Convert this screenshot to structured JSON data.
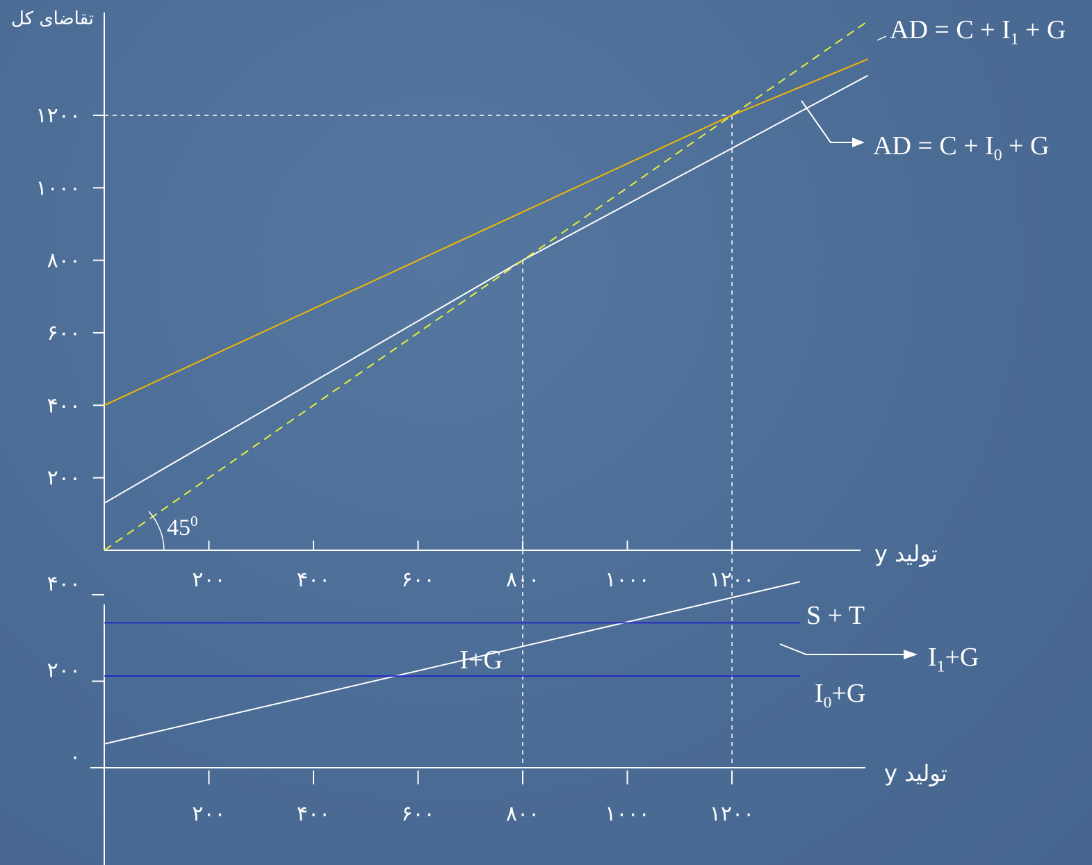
{
  "chart_data": [
    {
      "type": "line",
      "ylabel": "تقاضای کل",
      "xlabel": "y تولید",
      "x_ticks": [
        {
          "value": 200,
          "label": "۲۰۰"
        },
        {
          "value": 400,
          "label": "۴۰۰"
        },
        {
          "value": 600,
          "label": "۶۰۰"
        },
        {
          "value": 800,
          "label": "۸۰۰"
        },
        {
          "value": 1000,
          "label": "۱۰۰۰"
        },
        {
          "value": 1200,
          "label": "۱۲۰۰"
        }
      ],
      "y_ticks": [
        {
          "value": 200,
          "label": "۲۰۰"
        },
        {
          "value": 400,
          "label": "۴۰۰"
        },
        {
          "value": 600,
          "label": "۶۰۰"
        },
        {
          "value": 800,
          "label": "۸۰۰"
        },
        {
          "value": 1000,
          "label": "۱۰۰۰"
        },
        {
          "value": 1200,
          "label": "۱۲۰۰"
        }
      ],
      "series": [
        {
          "name": "AD = C + I1 + G",
          "color": "#f2b705",
          "style": "solid",
          "x": [
            0,
            1200,
            1460
          ],
          "y": [
            400,
            1200,
            1355
          ]
        },
        {
          "name": "AD = C + I0 + G",
          "color": "#ffffff",
          "style": "solid",
          "x": [
            0,
            800,
            1460
          ],
          "y": [
            130,
            800,
            1310
          ]
        },
        {
          "name": "45-degree line",
          "color": "#e6f03a",
          "style": "dashed",
          "x": [
            0,
            1460
          ],
          "y": [
            0,
            1460
          ]
        }
      ],
      "annotations": [
        {
          "text": "AD = C + I",
          "subscript": "1",
          "tail": " + G"
        },
        {
          "text": "AD = C + I",
          "subscript": "0",
          "tail": " + G"
        },
        {
          "text": "45",
          "superscript": "0"
        }
      ],
      "reference_lines": [
        {
          "x": 1200,
          "y": 1200
        },
        {
          "x": 800,
          "y": 800
        }
      ]
    },
    {
      "type": "line",
      "xlabel": "y تولید",
      "x_ticks": [
        {
          "value": 200,
          "label": "۲۰۰"
        },
        {
          "value": 400,
          "label": "۴۰۰"
        },
        {
          "value": 600,
          "label": "۶۰۰"
        },
        {
          "value": 800,
          "label": "۸۰۰"
        },
        {
          "value": 1000,
          "label": "۱۰۰۰"
        },
        {
          "value": 1200,
          "label": "۱۲۰۰"
        }
      ],
      "y_ticks": [
        {
          "value": 0,
          "label": "۰"
        },
        {
          "value": 200,
          "label": "۲۰۰"
        },
        {
          "value": 400,
          "label": "۴۰۰"
        }
      ],
      "series": [
        {
          "name": "S + T",
          "color": "#ffffff",
          "style": "solid",
          "x": [
            0,
            1330
          ],
          "y": [
            55,
            430
          ]
        },
        {
          "name": "I1+G",
          "color": "#1a1ad6",
          "style": "solid",
          "x": [
            0,
            1330
          ],
          "y": [
            335,
            335
          ]
        },
        {
          "name": "I0+G",
          "color": "#1a1ad6",
          "style": "solid",
          "x": [
            0,
            1330
          ],
          "y": [
            212,
            212
          ]
        }
      ],
      "annotations": [
        {
          "text": "S + T"
        },
        {
          "text": "I",
          "subscript": "1",
          "tail": "+G"
        },
        {
          "text": "I",
          "subscript": "0",
          "tail": "+G"
        },
        {
          "text": "I+G"
        }
      ],
      "reference_lines": [
        {
          "x": 800
        },
        {
          "x": 1200
        }
      ]
    }
  ],
  "colors": {
    "background": "#4d6e98",
    "axis": "#ffffff",
    "ad1": "#f2b705",
    "ad0": "#ffffff",
    "diag": "#e6f03a",
    "ig": "#1a1ad6"
  }
}
